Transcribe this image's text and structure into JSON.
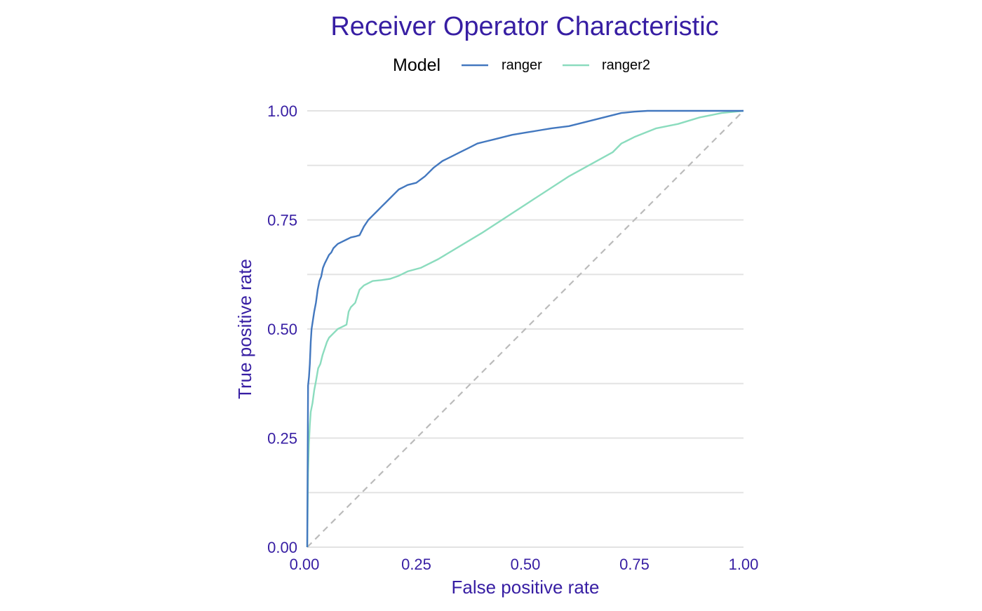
{
  "chart_data": {
    "type": "line",
    "title": "Receiver Operator Characteristic",
    "xlabel": "False positive rate",
    "ylabel": "True positive rate",
    "xlim": [
      0,
      1
    ],
    "ylim": [
      0,
      1
    ],
    "x_ticks": [
      0,
      0.25,
      0.5,
      0.75,
      1
    ],
    "x_tick_labels": [
      "0.00",
      "0.25",
      "0.50",
      "0.75",
      "1.00"
    ],
    "y_ticks": [
      0,
      0.25,
      0.5,
      0.75,
      1
    ],
    "y_tick_labels": [
      "0.00",
      "0.25",
      "0.50",
      "0.75",
      "1.00"
    ],
    "grid": true,
    "legend": {
      "title": "Model",
      "position": "top"
    },
    "colors": {
      "text": "#371EA3",
      "legend_text": "#000000",
      "grid": "#E3E3E3",
      "diagonal": "#BBBBBB"
    },
    "reference_line": {
      "name": "diagonal",
      "x": [
        0,
        1
      ],
      "y": [
        0,
        1
      ],
      "style": "dashed"
    },
    "series": [
      {
        "name": "ranger",
        "color": "#4378BF",
        "x": [
          0,
          0.002,
          0.004,
          0.006,
          0.008,
          0.01,
          0.013,
          0.016,
          0.02,
          0.024,
          0.028,
          0.032,
          0.036,
          0.04,
          0.045,
          0.05,
          0.055,
          0.06,
          0.07,
          0.08,
          0.09,
          0.1,
          0.11,
          0.12,
          0.13,
          0.14,
          0.15,
          0.16,
          0.17,
          0.18,
          0.19,
          0.2,
          0.21,
          0.22,
          0.23,
          0.25,
          0.27,
          0.29,
          0.31,
          0.33,
          0.35,
          0.37,
          0.39,
          0.41,
          0.43,
          0.45,
          0.47,
          0.5,
          0.53,
          0.56,
          0.6,
          0.64,
          0.68,
          0.7,
          0.72,
          0.75,
          0.78,
          0.85,
          0.9,
          0.95,
          1.0
        ],
        "y": [
          0,
          0.37,
          0.39,
          0.42,
          0.47,
          0.5,
          0.52,
          0.54,
          0.56,
          0.59,
          0.61,
          0.62,
          0.64,
          0.65,
          0.66,
          0.67,
          0.675,
          0.685,
          0.695,
          0.7,
          0.705,
          0.71,
          0.712,
          0.715,
          0.735,
          0.75,
          0.76,
          0.77,
          0.78,
          0.79,
          0.8,
          0.81,
          0.82,
          0.825,
          0.83,
          0.835,
          0.85,
          0.87,
          0.885,
          0.895,
          0.905,
          0.915,
          0.925,
          0.93,
          0.935,
          0.94,
          0.945,
          0.95,
          0.955,
          0.96,
          0.965,
          0.975,
          0.985,
          0.99,
          0.995,
          0.998,
          1.0,
          1.0,
          1.0,
          1.0,
          1.0
        ]
      },
      {
        "name": "ranger2",
        "color": "#8BDCBE",
        "x": [
          0,
          0.002,
          0.004,
          0.006,
          0.008,
          0.012,
          0.016,
          0.02,
          0.025,
          0.03,
          0.035,
          0.04,
          0.045,
          0.05,
          0.06,
          0.07,
          0.08,
          0.09,
          0.095,
          0.1,
          0.11,
          0.12,
          0.13,
          0.15,
          0.17,
          0.19,
          0.21,
          0.23,
          0.26,
          0.3,
          0.4,
          0.5,
          0.6,
          0.7,
          0.72,
          0.73,
          0.75,
          0.8,
          0.85,
          0.9,
          0.95,
          1.0
        ],
        "y": [
          0,
          0.17,
          0.24,
          0.28,
          0.31,
          0.33,
          0.36,
          0.38,
          0.41,
          0.42,
          0.44,
          0.455,
          0.47,
          0.48,
          0.49,
          0.5,
          0.505,
          0.51,
          0.54,
          0.55,
          0.56,
          0.59,
          0.6,
          0.61,
          0.612,
          0.615,
          0.622,
          0.632,
          0.64,
          0.66,
          0.72,
          0.785,
          0.85,
          0.905,
          0.925,
          0.93,
          0.94,
          0.96,
          0.97,
          0.985,
          0.995,
          1.0
        ]
      }
    ]
  }
}
